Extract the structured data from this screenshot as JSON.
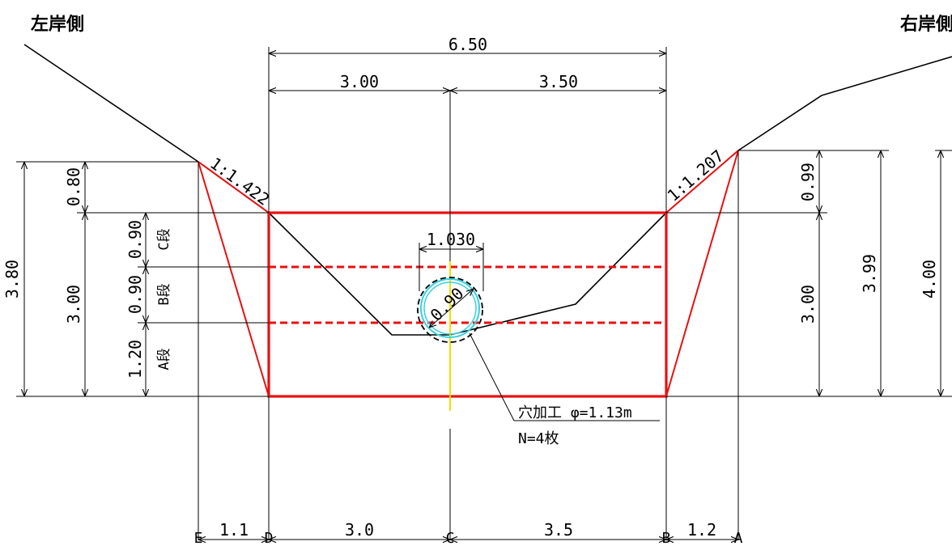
{
  "banks": {
    "left": "左岸側",
    "right": "右岸側"
  },
  "top_dims": {
    "total": "6.50",
    "left": "3.00",
    "right": "3.50"
  },
  "slopes": {
    "left": "1:1.422",
    "right": "1:1.207"
  },
  "left_heights": {
    "total": "3.80",
    "upper": "0.80",
    "lower": "3.00"
  },
  "tiers": {
    "c": {
      "height": "0.90",
      "label": "C段"
    },
    "b": {
      "height": "0.90",
      "label": "B段"
    },
    "a": {
      "height": "1.20",
      "label": "A段"
    }
  },
  "right_heights": {
    "upper": "0.99",
    "lower": "3.00",
    "total": "3.99",
    "outer": "4.00"
  },
  "pipe": {
    "width": "1.030",
    "diameter": "0.90"
  },
  "hole_note": {
    "line1": "穴加工 φ=1.13m",
    "line2": "N=4枚"
  },
  "bottom_dims": {
    "ed": "1.1",
    "dc": "3.0",
    "cb": "3.5",
    "ba": "1.2"
  },
  "points": {
    "e": "E",
    "d": "D",
    "c": "C",
    "b": "B",
    "a": "A"
  },
  "colors": {
    "frame": "#e81010",
    "pipe": "#35d0e0",
    "centerline": "#f0e000"
  }
}
